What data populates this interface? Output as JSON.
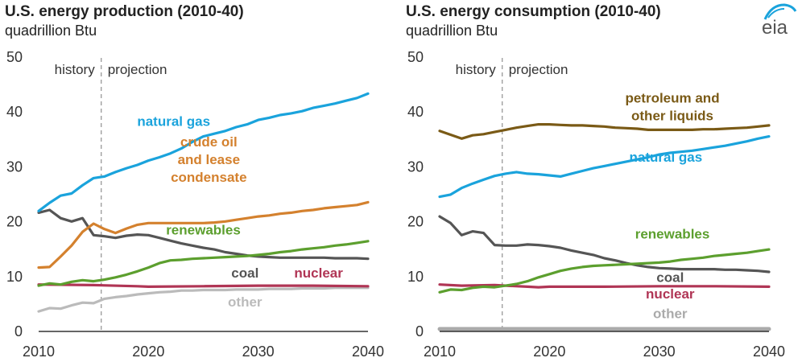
{
  "logo": {
    "text": "eia",
    "icon": "eia-logo-icon"
  },
  "chart_data": [
    {
      "type": "line",
      "title": "U.S. energy production (2010-40)",
      "subtitle": "quadrillion Btu",
      "xlim": [
        2010,
        2040
      ],
      "ylim": [
        0,
        50
      ],
      "x_ticks": [
        2010,
        2020,
        2030,
        2040
      ],
      "y_ticks": [
        0,
        10,
        20,
        30,
        40,
        50
      ],
      "grid": false,
      "divider_x": 2015.7,
      "annotations": {
        "history": "history",
        "projection": "projection"
      },
      "series": [
        {
          "name": "natural gas",
          "color": "#1aa3dc",
          "label_lines": [
            "natural gas"
          ],
          "label_pos": [
            2022.3,
            37.3
          ],
          "x": [
            2010,
            2011,
            2012,
            2013,
            2014,
            2015,
            2016,
            2017,
            2018,
            2019,
            2020,
            2021,
            2022,
            2023,
            2024,
            2025,
            2026,
            2027,
            2028,
            2029,
            2030,
            2031,
            2032,
            2033,
            2034,
            2035,
            2036,
            2037,
            2038,
            2039,
            2040
          ],
          "values": [
            21.8,
            23.3,
            24.6,
            25.0,
            26.5,
            27.8,
            28.1,
            28.9,
            29.6,
            30.2,
            31.0,
            31.6,
            32.3,
            33.2,
            34.4,
            35.4,
            35.9,
            36.4,
            37.1,
            37.6,
            38.4,
            38.8,
            39.3,
            39.6,
            40.0,
            40.6,
            41.0,
            41.4,
            41.9,
            42.4,
            43.2
          ]
        },
        {
          "name": "crude oil and lease condensate",
          "color": "#d4812e",
          "label_lines": [
            "crude oil",
            "and lease",
            "condensate"
          ],
          "label_pos": [
            2025.5,
            33.6
          ],
          "x": [
            2010,
            2011,
            2012,
            2013,
            2014,
            2015,
            2016,
            2017,
            2018,
            2019,
            2020,
            2021,
            2022,
            2023,
            2024,
            2025,
            2026,
            2027,
            2028,
            2029,
            2030,
            2031,
            2032,
            2033,
            2034,
            2035,
            2036,
            2037,
            2038,
            2039,
            2040
          ],
          "values": [
            11.5,
            11.6,
            13.5,
            15.5,
            18.0,
            19.5,
            18.5,
            17.8,
            18.6,
            19.3,
            19.6,
            19.6,
            19.6,
            19.6,
            19.6,
            19.6,
            19.7,
            19.9,
            20.2,
            20.5,
            20.8,
            21.0,
            21.3,
            21.5,
            21.8,
            22.0,
            22.3,
            22.5,
            22.7,
            22.9,
            23.4
          ]
        },
        {
          "name": "renewables",
          "color": "#5c9f2e",
          "label_lines": [
            "renewables"
          ],
          "label_pos": [
            2025.0,
            17.5
          ],
          "x": [
            2010,
            2011,
            2012,
            2013,
            2014,
            2015,
            2016,
            2017,
            2018,
            2019,
            2020,
            2021,
            2022,
            2023,
            2024,
            2025,
            2026,
            2027,
            2028,
            2029,
            2030,
            2031,
            2032,
            2033,
            2034,
            2035,
            2036,
            2037,
            2038,
            2039,
            2040
          ],
          "values": [
            8.2,
            8.6,
            8.4,
            8.9,
            9.2,
            9.0,
            9.3,
            9.7,
            10.2,
            10.8,
            11.5,
            12.3,
            12.8,
            12.9,
            13.1,
            13.2,
            13.3,
            13.4,
            13.5,
            13.6,
            13.8,
            14.0,
            14.3,
            14.5,
            14.8,
            15.0,
            15.2,
            15.5,
            15.7,
            16.0,
            16.3
          ]
        },
        {
          "name": "coal",
          "color": "#555555",
          "label_lines": [
            "coal"
          ],
          "label_pos": [
            2028.8,
            9.7
          ],
          "x": [
            2010,
            2011,
            2012,
            2013,
            2014,
            2015,
            2016,
            2017,
            2018,
            2019,
            2020,
            2021,
            2022,
            2023,
            2024,
            2025,
            2026,
            2027,
            2028,
            2029,
            2030,
            2031,
            2032,
            2033,
            2034,
            2035,
            2036,
            2037,
            2038,
            2039,
            2040
          ],
          "values": [
            21.5,
            22.0,
            20.5,
            19.9,
            20.5,
            17.4,
            17.2,
            16.9,
            17.3,
            17.5,
            17.4,
            16.9,
            16.4,
            15.9,
            15.5,
            15.1,
            14.8,
            14.3,
            14.0,
            13.7,
            13.5,
            13.4,
            13.3,
            13.3,
            13.3,
            13.3,
            13.3,
            13.2,
            13.2,
            13.2,
            13.1
          ]
        },
        {
          "name": "nuclear",
          "color": "#b03555",
          "label_lines": [
            "nuclear"
          ],
          "label_pos": [
            2035.5,
            9.7
          ],
          "x": [
            2010,
            2015,
            2019,
            2020,
            2025,
            2030,
            2035,
            2040
          ],
          "values": [
            8.4,
            8.3,
            8.1,
            8.0,
            8.1,
            8.2,
            8.2,
            8.1
          ]
        },
        {
          "name": "other",
          "color": "#bbbbbb",
          "label_lines": [
            "other"
          ],
          "label_pos": [
            2028.8,
            4.4
          ],
          "x": [
            2010,
            2011,
            2012,
            2013,
            2014,
            2015,
            2016,
            2017,
            2018,
            2019,
            2020,
            2021,
            2022,
            2023,
            2024,
            2025,
            2026,
            2027,
            2028,
            2029,
            2030,
            2031,
            2032,
            2033,
            2034,
            2035,
            2036,
            2037,
            2038,
            2039,
            2040
          ],
          "values": [
            3.5,
            4.1,
            4.0,
            4.6,
            5.1,
            5.0,
            5.8,
            6.1,
            6.3,
            6.6,
            6.8,
            7.0,
            7.1,
            7.3,
            7.3,
            7.4,
            7.4,
            7.4,
            7.5,
            7.5,
            7.5,
            7.6,
            7.6,
            7.6,
            7.7,
            7.7,
            7.7,
            7.8,
            7.8,
            7.8,
            7.8
          ]
        }
      ]
    },
    {
      "type": "line",
      "title": "U.S. energy consumption (2010-40)",
      "subtitle": "quadrillion Btu",
      "xlim": [
        2010,
        2040
      ],
      "ylim": [
        0,
        50
      ],
      "x_ticks": [
        2010,
        2020,
        2030,
        2040
      ],
      "y_ticks": [
        0,
        10,
        20,
        30,
        40,
        50
      ],
      "grid": false,
      "divider_x": 2015.7,
      "annotations": {
        "history": "history",
        "projection": "projection"
      },
      "series": [
        {
          "name": "petroleum and other liquids",
          "color": "#7a5a16",
          "label_lines": [
            "petroleum and",
            "other liquids"
          ],
          "label_pos": [
            2031.2,
            41.6
          ],
          "x": [
            2010,
            2011,
            2012,
            2013,
            2014,
            2015,
            2016,
            2017,
            2018,
            2019,
            2020,
            2021,
            2022,
            2023,
            2024,
            2025,
            2026,
            2027,
            2028,
            2029,
            2030,
            2031,
            2032,
            2033,
            2034,
            2035,
            2036,
            2037,
            2038,
            2039,
            2040
          ],
          "values": [
            36.4,
            35.7,
            35.0,
            35.6,
            35.8,
            36.2,
            36.6,
            37.0,
            37.3,
            37.6,
            37.6,
            37.5,
            37.4,
            37.4,
            37.3,
            37.2,
            37.0,
            36.9,
            36.8,
            36.6,
            36.6,
            36.6,
            36.6,
            36.6,
            36.7,
            36.7,
            36.8,
            36.9,
            37.0,
            37.2,
            37.4
          ]
        },
        {
          "name": "natural gas",
          "color": "#1aa3dc",
          "label_lines": [
            "natural gas"
          ],
          "label_pos": [
            2030.6,
            30.8
          ],
          "x": [
            2010,
            2011,
            2012,
            2013,
            2014,
            2015,
            2016,
            2017,
            2018,
            2019,
            2020,
            2021,
            2022,
            2023,
            2024,
            2025,
            2026,
            2027,
            2028,
            2029,
            2030,
            2031,
            2032,
            2033,
            2034,
            2035,
            2036,
            2037,
            2038,
            2039,
            2040
          ],
          "values": [
            24.4,
            24.8,
            26.0,
            26.8,
            27.5,
            28.2,
            28.6,
            28.9,
            28.6,
            28.5,
            28.3,
            28.1,
            28.6,
            29.1,
            29.6,
            30.0,
            30.4,
            30.8,
            31.2,
            31.6,
            32.1,
            32.4,
            32.6,
            32.8,
            33.1,
            33.4,
            33.7,
            34.1,
            34.5,
            35.0,
            35.4
          ]
        },
        {
          "name": "renewables",
          "color": "#5c9f2e",
          "label_lines": [
            "renewables"
          ],
          "label_pos": [
            2031.2,
            16.8
          ],
          "x": [
            2010,
            2011,
            2012,
            2013,
            2014,
            2015,
            2016,
            2017,
            2018,
            2019,
            2020,
            2021,
            2022,
            2023,
            2024,
            2025,
            2026,
            2027,
            2028,
            2029,
            2030,
            2031,
            2032,
            2033,
            2034,
            2035,
            2036,
            2037,
            2038,
            2039,
            2040
          ],
          "values": [
            7.0,
            7.5,
            7.4,
            7.8,
            8.0,
            7.9,
            8.2,
            8.5,
            9.0,
            9.7,
            10.3,
            10.9,
            11.3,
            11.6,
            11.8,
            11.9,
            12.0,
            12.1,
            12.2,
            12.3,
            12.4,
            12.6,
            12.9,
            13.1,
            13.3,
            13.6,
            13.8,
            14.0,
            14.2,
            14.5,
            14.8
          ]
        },
        {
          "name": "coal",
          "color": "#555555",
          "label_lines": [
            "coal"
          ],
          "label_pos": [
            2031.0,
            8.9
          ],
          "x": [
            2010,
            2011,
            2012,
            2013,
            2014,
            2015,
            2016,
            2017,
            2018,
            2019,
            2020,
            2021,
            2022,
            2023,
            2024,
            2025,
            2026,
            2027,
            2028,
            2029,
            2030,
            2031,
            2032,
            2033,
            2034,
            2035,
            2036,
            2037,
            2038,
            2039,
            2040
          ],
          "values": [
            20.8,
            19.6,
            17.4,
            18.1,
            17.8,
            15.6,
            15.5,
            15.5,
            15.7,
            15.6,
            15.4,
            15.1,
            14.6,
            14.2,
            13.8,
            13.2,
            12.8,
            12.3,
            11.9,
            11.6,
            11.4,
            11.3,
            11.2,
            11.2,
            11.2,
            11.2,
            11.1,
            11.1,
            11.0,
            10.9,
            10.7
          ]
        },
        {
          "name": "nuclear",
          "color": "#b03555",
          "label_lines": [
            "nuclear"
          ],
          "label_pos": [
            2031.0,
            5.9
          ],
          "x": [
            2010,
            2012,
            2015,
            2018,
            2019,
            2020,
            2025,
            2030,
            2035,
            2040
          ],
          "values": [
            8.4,
            8.2,
            8.3,
            8.0,
            7.9,
            8.0,
            8.0,
            8.1,
            8.1,
            8.0
          ]
        },
        {
          "name": "other",
          "color": "#aaaaaa",
          "label_lines": [
            "other"
          ],
          "label_pos": [
            2031.0,
            2.3
          ],
          "x": [
            2010,
            2040
          ],
          "values": [
            0.3,
            0.3
          ]
        }
      ]
    }
  ]
}
